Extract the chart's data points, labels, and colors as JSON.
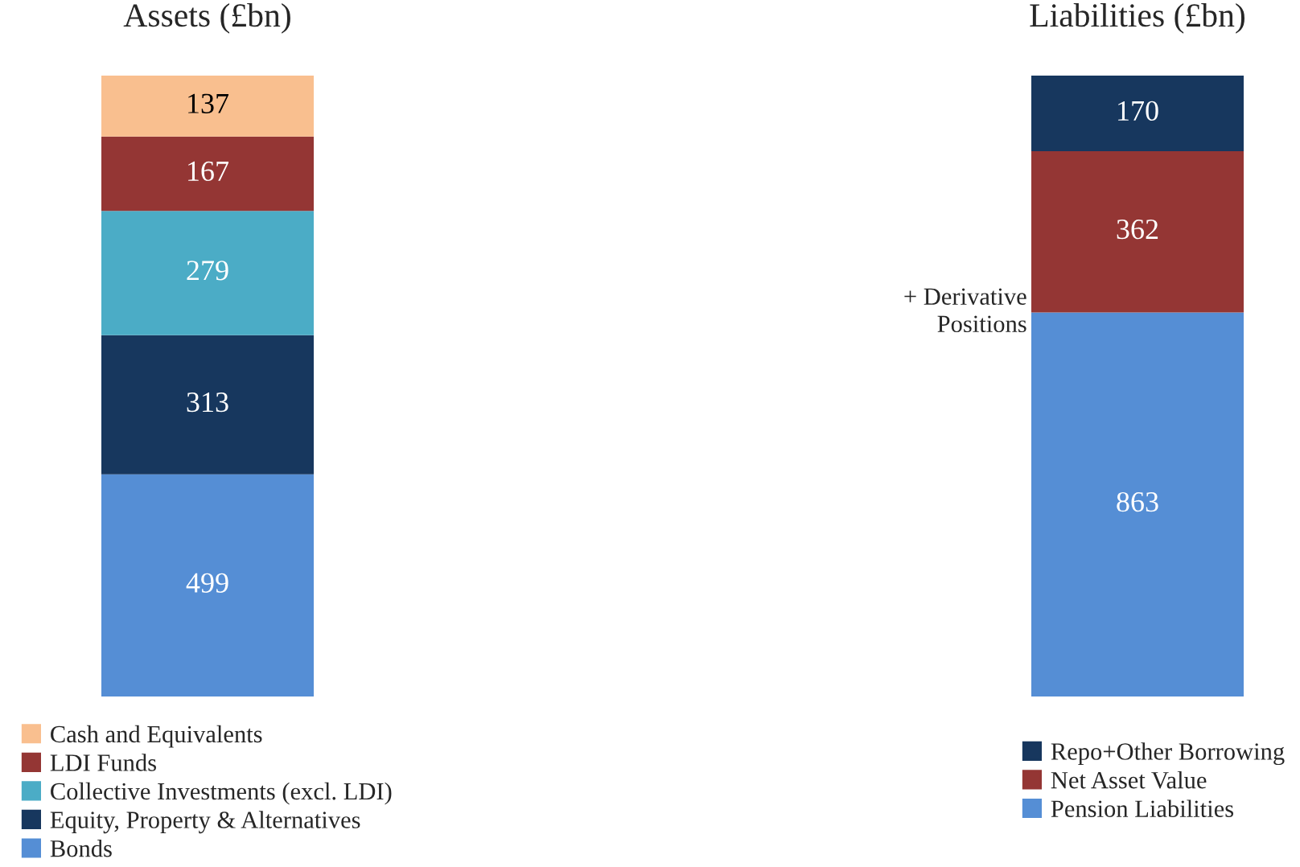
{
  "chart_data": [
    {
      "type": "bar",
      "title": "Assets (£bn)",
      "categories": [
        null
      ],
      "stacked": true,
      "tick_labels": false,
      "data_labels": true,
      "legend": "bottom",
      "series": [
        {
          "name": "Bonds",
          "color": "#558ed5",
          "values": [
            499
          ]
        },
        {
          "name": "Equity, Property & Alternatives",
          "color": "#17375e",
          "values": [
            313
          ]
        },
        {
          "name": "Collective Investments (excl. LDI)",
          "color": "#4bacc6",
          "values": [
            279
          ]
        },
        {
          "name": "LDI Funds",
          "color": "#943634",
          "values": [
            167
          ]
        },
        {
          "name": "Cash and Equivalents",
          "color": "#f9bf8f",
          "values": [
            137
          ]
        }
      ]
    },
    {
      "type": "bar",
      "title": "Liabilities (£bn)",
      "categories": [
        null
      ],
      "stacked": true,
      "tick_labels": false,
      "data_labels": true,
      "legend": "bottom",
      "annotations": [
        "+ Derivative Positions"
      ],
      "series": [
        {
          "name": "Pension Liabilities",
          "color": "#558ed5",
          "values": [
            863
          ]
        },
        {
          "name": "Net Asset Value",
          "color": "#943634",
          "values": [
            362
          ]
        },
        {
          "name": "Repo+Other Borrowing",
          "color": "#17375e",
          "values": [
            170
          ]
        }
      ]
    }
  ]
}
